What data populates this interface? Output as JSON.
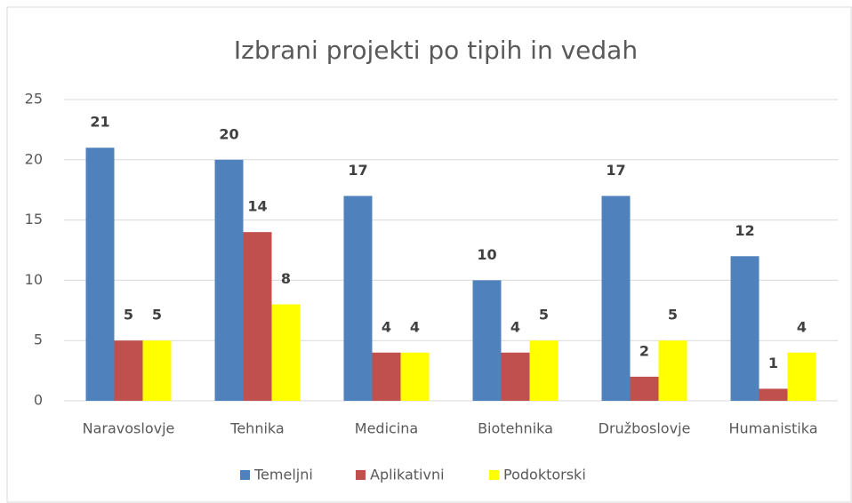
{
  "chart_data": {
    "type": "bar",
    "title": "Izbrani projekti po tipih in vedah",
    "categories": [
      "Naravoslovje",
      "Tehnika",
      "Medicina",
      "Biotehnika",
      "Družboslovje",
      "Humanistika"
    ],
    "series": [
      {
        "name": "Temeljni",
        "color": "#4f81bd",
        "values": [
          21,
          20,
          17,
          10,
          17,
          12
        ]
      },
      {
        "name": "Aplikativni",
        "color": "#c0504d",
        "values": [
          5,
          14,
          4,
          4,
          2,
          1
        ]
      },
      {
        "name": "Podoktorski",
        "color": "#ffff00",
        "values": [
          5,
          8,
          4,
          5,
          5,
          4
        ]
      }
    ],
    "ylim": [
      0,
      25
    ],
    "yticks": [
      0,
      5,
      10,
      15,
      20,
      25
    ],
    "grid": true,
    "legend": "bottom"
  }
}
